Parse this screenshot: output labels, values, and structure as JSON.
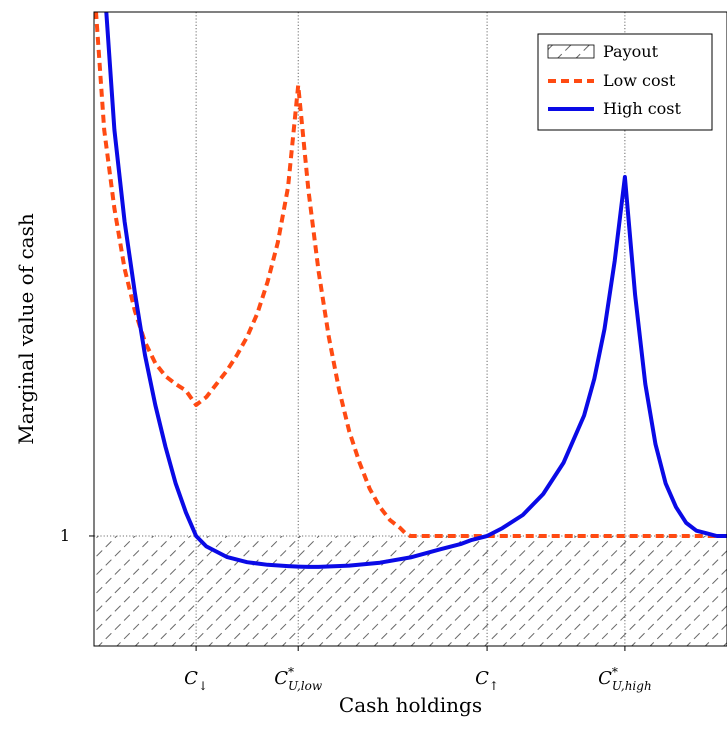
{
  "chart_data": {
    "type": "line",
    "title": "",
    "xlabel": "Cash holdings",
    "ylabel": "Marginal value of cash",
    "grid": false,
    "legend_position": "top-right",
    "xlim": [
      -0.5,
      5.7
    ],
    "ylim": [
      0.58,
      3.0
    ],
    "y_ticks": [
      {
        "value": 1,
        "label": "1"
      }
    ],
    "x_ticks": [
      {
        "value": 0.5,
        "label": "C",
        "sub": "↓",
        "sup": ""
      },
      {
        "value": 1.5,
        "label": "C",
        "sub": "U,low",
        "sup": "*"
      },
      {
        "value": 3.35,
        "label": "C",
        "sub": "↑",
        "sup": ""
      },
      {
        "value": 4.7,
        "label": "C",
        "sub": "U,high",
        "sup": "*"
      }
    ],
    "payout_region": {
      "y_from": 0.58,
      "y_to": 1.0,
      "label": "Payout"
    },
    "series": [
      {
        "name": "Low cost",
        "color": "#ff4a12",
        "style": "dashed",
        "x": [
          -0.5,
          -0.48,
          -0.4,
          -0.3,
          -0.2,
          -0.1,
          0.0,
          0.1,
          0.2,
          0.3,
          0.4,
          0.5,
          0.6,
          0.7,
          0.8,
          0.9,
          1.0,
          1.1,
          1.2,
          1.3,
          1.4,
          1.5,
          1.6,
          1.7,
          1.8,
          1.9,
          2.0,
          2.1,
          2.2,
          2.3,
          2.4,
          2.5,
          2.55,
          2.6,
          2.7,
          2.8,
          3.0,
          3.5,
          4.0,
          4.5,
          5.0,
          5.5,
          5.7
        ],
        "y": [
          3.5,
          3.0,
          2.55,
          2.25,
          2.02,
          1.86,
          1.74,
          1.66,
          1.61,
          1.58,
          1.555,
          1.5,
          1.53,
          1.58,
          1.63,
          1.69,
          1.76,
          1.85,
          1.97,
          2.12,
          2.33,
          2.72,
          2.32,
          2.01,
          1.76,
          1.56,
          1.4,
          1.28,
          1.18,
          1.11,
          1.06,
          1.03,
          1.01,
          1.0,
          1.0,
          1.0,
          1.0,
          1.0,
          1.0,
          1.0,
          1.0,
          1.0,
          1.0
        ]
      },
      {
        "name": "High cost",
        "color": "#0a0ae6",
        "style": "solid",
        "x": [
          -0.5,
          -0.38,
          -0.3,
          -0.2,
          -0.1,
          0.0,
          0.1,
          0.2,
          0.3,
          0.4,
          0.5,
          0.6,
          0.8,
          1.0,
          1.2,
          1.4,
          1.5,
          1.6,
          1.7,
          2.0,
          2.3,
          2.6,
          2.9,
          3.1,
          3.2,
          3.35,
          3.5,
          3.7,
          3.9,
          4.1,
          4.3,
          4.4,
          4.5,
          4.6,
          4.7,
          4.8,
          4.9,
          5.0,
          5.1,
          5.2,
          5.3,
          5.4,
          5.5,
          5.6,
          5.7
        ],
        "y": [
          3.5,
          3.0,
          2.55,
          2.2,
          1.93,
          1.69,
          1.5,
          1.34,
          1.2,
          1.09,
          1.0,
          0.96,
          0.92,
          0.9,
          0.89,
          0.885,
          0.883,
          0.882,
          0.882,
          0.887,
          0.898,
          0.918,
          0.95,
          0.97,
          0.985,
          1.0,
          1.03,
          1.08,
          1.16,
          1.28,
          1.46,
          1.6,
          1.79,
          2.05,
          2.37,
          1.92,
          1.58,
          1.35,
          1.2,
          1.11,
          1.05,
          1.02,
          1.01,
          1.0,
          1.0
        ]
      }
    ]
  }
}
